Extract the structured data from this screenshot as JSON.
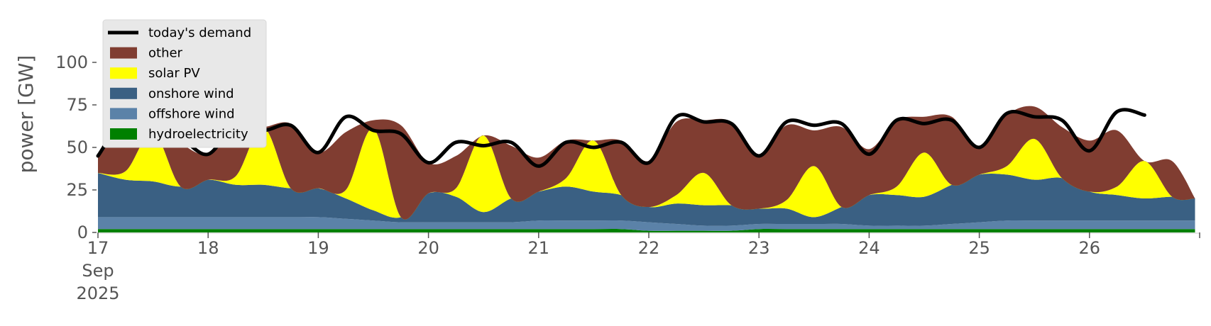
{
  "chart_data": {
    "type": "area",
    "stacked": true,
    "ylabel": "power [GW]",
    "ylim": [
      0,
      120
    ],
    "y_ticks": [
      0,
      25,
      50,
      75,
      100
    ],
    "x_start": "2025-09-17",
    "x_end": "2025-09-27",
    "x_ticks": [
      {
        "date": "2025-09-17",
        "label": "17",
        "month": "Sep",
        "year": "2025"
      },
      {
        "date": "2025-09-18",
        "label": "18"
      },
      {
        "date": "2025-09-19",
        "label": "19"
      },
      {
        "date": "2025-09-20",
        "label": "20"
      },
      {
        "date": "2025-09-21",
        "label": "21"
      },
      {
        "date": "2025-09-22",
        "label": "22"
      },
      {
        "date": "2025-09-23",
        "label": "23"
      },
      {
        "date": "2025-09-24",
        "label": "24"
      },
      {
        "date": "2025-09-25",
        "label": "25"
      },
      {
        "date": "2025-09-26",
        "label": "26"
      }
    ],
    "grid": false,
    "legend_position": "top-left",
    "x": [
      "2025-09-17 00:00",
      "2025-09-17 06:00",
      "2025-09-17 12:00",
      "2025-09-17 18:00",
      "2025-09-18 00:00",
      "2025-09-18 06:00",
      "2025-09-18 12:00",
      "2025-09-18 18:00",
      "2025-09-19 00:00",
      "2025-09-19 06:00",
      "2025-09-19 12:00",
      "2025-09-19 18:00",
      "2025-09-20 00:00",
      "2025-09-20 06:00",
      "2025-09-20 12:00",
      "2025-09-20 18:00",
      "2025-09-21 00:00",
      "2025-09-21 06:00",
      "2025-09-21 12:00",
      "2025-09-21 18:00",
      "2025-09-22 00:00",
      "2025-09-22 06:00",
      "2025-09-22 12:00",
      "2025-09-22 18:00",
      "2025-09-23 00:00",
      "2025-09-23 06:00",
      "2025-09-23 12:00",
      "2025-09-23 18:00",
      "2025-09-24 00:00",
      "2025-09-24 06:00",
      "2025-09-24 12:00",
      "2025-09-24 18:00",
      "2025-09-25 00:00",
      "2025-09-25 06:00",
      "2025-09-25 12:00",
      "2025-09-25 18:00",
      "2025-09-26 00:00",
      "2025-09-26 06:00",
      "2025-09-26 12:00",
      "2025-09-26 18:00",
      "2025-09-26 23:00"
    ],
    "series": [
      {
        "name": "hydroelectricity",
        "color": "#008000",
        "values": [
          2,
          2,
          2,
          2,
          2,
          2,
          2,
          2,
          2,
          2,
          2,
          2,
          2,
          2,
          2,
          2,
          2,
          2,
          2,
          2,
          1,
          1,
          1,
          1,
          2,
          2,
          2,
          2,
          2,
          2,
          2,
          2,
          2,
          2,
          2,
          2,
          2,
          2,
          2,
          2,
          2
        ]
      },
      {
        "name": "offshore wind",
        "color": "#5b82a8",
        "values": [
          7,
          7,
          7,
          7,
          7,
          7,
          7,
          7,
          7,
          6,
          5,
          4,
          4,
          4,
          4,
          4,
          5,
          5,
          5,
          5,
          5,
          4,
          3,
          3,
          3,
          3,
          3,
          3,
          2,
          2,
          2,
          3,
          4,
          5,
          5,
          5,
          5,
          5,
          5,
          5,
          5
        ]
      },
      {
        "name": "onshore wind",
        "color": "#3a6083",
        "values": [
          26,
          22,
          21,
          18,
          22,
          19,
          19,
          17,
          17,
          12,
          6,
          3,
          17,
          15,
          6,
          14,
          17,
          20,
          17,
          15,
          9,
          12,
          12,
          12,
          9,
          9,
          4,
          10,
          18,
          18,
          17,
          23,
          28,
          27,
          24,
          25,
          17,
          15,
          13,
          14,
          13
        ]
      },
      {
        "name": "solar PV",
        "color": "#ffff00",
        "values": [
          0,
          5,
          29,
          0,
          0,
          5,
          34,
          0,
          0,
          5,
          48,
          0,
          0,
          5,
          45,
          0,
          0,
          5,
          30,
          0,
          0,
          5,
          19,
          0,
          0,
          5,
          30,
          0,
          0,
          5,
          26,
          0,
          0,
          5,
          24,
          0,
          0,
          5,
          22,
          0,
          0
        ]
      },
      {
        "name": "other",
        "color": "#803d31",
        "values": [
          10,
          30,
          0,
          25,
          15,
          30,
          0,
          38,
          21,
          34,
          5,
          54,
          18,
          19,
          0,
          31,
          20,
          22,
          0,
          32,
          27,
          43,
          31,
          49,
          32,
          44,
          21,
          47,
          27,
          39,
          21,
          40,
          16,
          30,
          19,
          30,
          30,
          33,
          0,
          21,
          0
        ]
      }
    ],
    "demand": {
      "name": "today's demand",
      "color": "#000000",
      "values": [
        45,
        66,
        56,
        55,
        46,
        64,
        60,
        63,
        47,
        68,
        60,
        58,
        41,
        53,
        51,
        53,
        39,
        53,
        50,
        53,
        41,
        68,
        65,
        64,
        45,
        65,
        63,
        64,
        46,
        66,
        64,
        66,
        50,
        70,
        68,
        66,
        48,
        71,
        69,
        null,
        null
      ]
    }
  }
}
